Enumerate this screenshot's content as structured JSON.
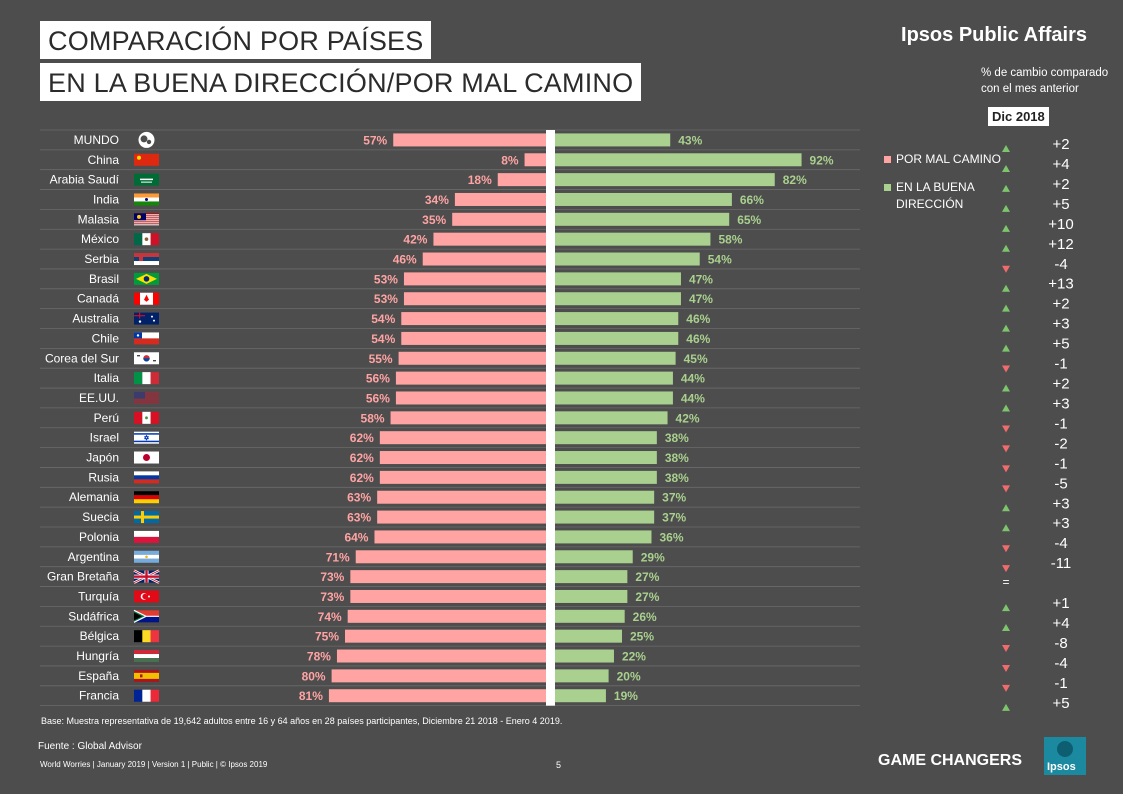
{
  "title_line1": "COMPARACIÓN POR PAÍSES",
  "title_line2": "EN LA BUENA DIRECCIÓN/POR MAL CAMINO",
  "brand": "Ipsos Public Affairs",
  "change_note": "% de cambio comparado con el mes anterior",
  "change_period": "Dic 2018",
  "colors": {
    "bad": "#ffa3a3",
    "good": "#a9d08e",
    "up": "#7dc46d",
    "down": "#f06b6b",
    "background": "#4d4d4d"
  },
  "chart_data": {
    "type": "bar",
    "orientation": "horizontal-diverging",
    "categories": [
      "MUNDO",
      "China",
      "Arabia Saudí",
      "India",
      "Malasia",
      "México",
      "Serbia",
      "Brasil",
      "Canadá",
      "Australia",
      "Chile",
      "Corea del Sur",
      "Italia",
      "EE.UU.",
      "Perú",
      "Israel",
      "Japón",
      "Rusia",
      "Alemania",
      "Suecia",
      "Polonia",
      "Argentina",
      "Gran Bretaña",
      "Turquía",
      "Sudáfrica",
      "Bélgica",
      "Hungría",
      "España",
      "Francia"
    ],
    "flags": [
      "globe-icon",
      "china-flag-icon",
      "saudi-arabia-flag-icon",
      "india-flag-icon",
      "malaysia-flag-icon",
      "mexico-flag-icon",
      "serbia-flag-icon",
      "brazil-flag-icon",
      "canada-flag-icon",
      "australia-flag-icon",
      "chile-flag-icon",
      "south-korea-flag-icon",
      "italy-flag-icon",
      "usa-flag-icon",
      "peru-flag-icon",
      "israel-flag-icon",
      "japan-flag-icon",
      "russia-flag-icon",
      "germany-flag-icon",
      "sweden-flag-icon",
      "poland-flag-icon",
      "argentina-flag-icon",
      "uk-flag-icon",
      "turkey-flag-icon",
      "south-africa-flag-icon",
      "belgium-flag-icon",
      "hungary-flag-icon",
      "spain-flag-icon",
      "france-flag-icon"
    ],
    "series": [
      {
        "name": "POR MAL CAMINO",
        "values": [
          57,
          8,
          18,
          34,
          35,
          42,
          46,
          53,
          53,
          54,
          54,
          55,
          56,
          56,
          58,
          62,
          62,
          62,
          63,
          63,
          64,
          71,
          73,
          73,
          74,
          75,
          78,
          80,
          81
        ]
      },
      {
        "name": "EN LA BUENA DIRECCIÓN",
        "values": [
          43,
          92,
          82,
          66,
          65,
          58,
          54,
          47,
          47,
          46,
          46,
          45,
          44,
          44,
          42,
          38,
          38,
          38,
          37,
          37,
          36,
          29,
          27,
          27,
          26,
          25,
          22,
          20,
          19
        ]
      }
    ],
    "value_suffix": "%",
    "change": [
      {
        "dir": "up",
        "label": "+2"
      },
      {
        "dir": "up",
        "label": "+4"
      },
      {
        "dir": "up",
        "label": "+2"
      },
      {
        "dir": "up",
        "label": "+5"
      },
      {
        "dir": "up",
        "label": "+10"
      },
      {
        "dir": "up",
        "label": "+12"
      },
      {
        "dir": "down",
        "label": "-4"
      },
      {
        "dir": "up",
        "label": "+13"
      },
      {
        "dir": "up",
        "label": "+2"
      },
      {
        "dir": "up",
        "label": "+3"
      },
      {
        "dir": "up",
        "label": "+5"
      },
      {
        "dir": "down",
        "label": "-1"
      },
      {
        "dir": "up",
        "label": "+2"
      },
      {
        "dir": "up",
        "label": "+3"
      },
      {
        "dir": "down",
        "label": "-1"
      },
      {
        "dir": "down",
        "label": "-2"
      },
      {
        "dir": "down",
        "label": "-1"
      },
      {
        "dir": "down",
        "label": "-5"
      },
      {
        "dir": "up",
        "label": "+3"
      },
      {
        "dir": "up",
        "label": "+3"
      },
      {
        "dir": "down",
        "label": "-4"
      },
      {
        "dir": "down",
        "label": "-11"
      },
      {
        "dir": "none",
        "label": "="
      },
      {
        "dir": "up",
        "label": "+1"
      },
      {
        "dir": "up",
        "label": "+4"
      },
      {
        "dir": "down",
        "label": "-8"
      },
      {
        "dir": "down",
        "label": "-4"
      },
      {
        "dir": "down",
        "label": "-1"
      },
      {
        "dir": "up",
        "label": "+5"
      }
    ],
    "legend_position": "right"
  },
  "footnote": "Base: Muestra representativa de 19,642 adultos entre 16 y 64 años en 28 países participantes, Diciembre 21 2018 - Enero 4 2019.",
  "source": "Fuente : Global Advisor",
  "meta": "World Worries | January 2019 | Version 1 | Public | © Ipsos 2019",
  "page_number": "5",
  "tagline": "GAME CHANGERS",
  "logo_text": "Ipsos"
}
